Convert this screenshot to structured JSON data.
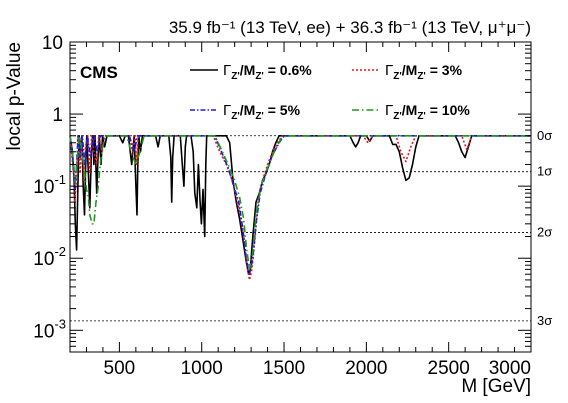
{
  "header": {
    "lumi_text": "35.9 fb⁻¹ (13 TeV, ee) + 36.3 fb⁻¹ (13 TeV, μ⁺μ⁻)"
  },
  "experiment_label": "CMS",
  "chart_data": {
    "type": "line",
    "xlabel": "M [GeV]",
    "ylabel": "local p-Value",
    "xlim": [
      200,
      3000
    ],
    "ylim": [
      0.0005,
      10
    ],
    "yscale": "log",
    "grid": false,
    "legend_placement": "top",
    "x_ticks": [
      {
        "value": 500,
        "label": "500"
      },
      {
        "value": 1000,
        "label": "1000"
      },
      {
        "value": 1500,
        "label": "1500"
      },
      {
        "value": 2000,
        "label": "2000"
      },
      {
        "value": 2500,
        "label": "2500"
      },
      {
        "value": 3000,
        "label": "3000"
      }
    ],
    "y_ticks": [
      {
        "value": 10,
        "base": "10",
        "exp": ""
      },
      {
        "value": 1,
        "base": "1",
        "exp": ""
      },
      {
        "value": 0.1,
        "base": "10",
        "exp": "-1"
      },
      {
        "value": 0.01,
        "base": "10",
        "exp": "-2"
      },
      {
        "value": 0.001,
        "base": "10",
        "exp": "-3"
      }
    ],
    "sigma_lines": [
      {
        "label": "0σ",
        "value": 0.5
      },
      {
        "label": "1σ",
        "value": 0.1587
      },
      {
        "label": "2σ",
        "value": 0.0228
      },
      {
        "label": "3σ",
        "value": 0.00135
      }
    ],
    "series": [
      {
        "name": "0.6%",
        "color": "#000000",
        "dash": "",
        "points": [
          [
            200,
            0.5
          ],
          [
            215,
            0.3
          ],
          [
            225,
            0.12
          ],
          [
            232,
            0.03
          ],
          [
            240,
            0.013
          ],
          [
            248,
            0.1
          ],
          [
            255,
            0.5
          ],
          [
            265,
            0.3
          ],
          [
            272,
            0.5
          ],
          [
            280,
            0.1
          ],
          [
            288,
            0.04
          ],
          [
            295,
            0.18
          ],
          [
            302,
            0.5
          ],
          [
            312,
            0.15
          ],
          [
            320,
            0.05
          ],
          [
            330,
            0.3
          ],
          [
            338,
            0.5
          ],
          [
            345,
            0.2
          ],
          [
            352,
            0.5
          ],
          [
            362,
            0.08
          ],
          [
            370,
            0.25
          ],
          [
            378,
            0.5
          ],
          [
            388,
            0.2
          ],
          [
            398,
            0.5
          ],
          [
            410,
            0.35
          ],
          [
            425,
            0.5
          ],
          [
            500,
            0.5
          ],
          [
            520,
            0.4
          ],
          [
            535,
            0.5
          ],
          [
            555,
            0.5
          ],
          [
            575,
            0.2
          ],
          [
            590,
            0.5
          ],
          [
            600,
            0.1
          ],
          [
            607,
            0.04
          ],
          [
            612,
            0.2
          ],
          [
            618,
            0.5
          ],
          [
            628,
            0.3
          ],
          [
            640,
            0.5
          ],
          [
            720,
            0.5
          ],
          [
            735,
            0.35
          ],
          [
            748,
            0.5
          ],
          [
            800,
            0.5
          ],
          [
            812,
            0.25
          ],
          [
            818,
            0.06
          ],
          [
            824,
            0.25
          ],
          [
            832,
            0.5
          ],
          [
            870,
            0.5
          ],
          [
            882,
            0.2
          ],
          [
            892,
            0.1
          ],
          [
            900,
            0.35
          ],
          [
            908,
            0.5
          ],
          [
            935,
            0.5
          ],
          [
            948,
            0.3
          ],
          [
            958,
            0.08
          ],
          [
            970,
            0.05
          ],
          [
            980,
            0.2
          ],
          [
            990,
            0.06
          ],
          [
            998,
            0.03
          ],
          [
            1008,
            0.09
          ],
          [
            1018,
            0.02
          ],
          [
            1025,
            0.2
          ],
          [
            1030,
            0.5
          ],
          [
            1150,
            0.5
          ],
          [
            1170,
            0.4
          ],
          [
            1190,
            0.12
          ],
          [
            1210,
            0.06
          ],
          [
            1230,
            0.035
          ],
          [
            1250,
            0.018
          ],
          [
            1270,
            0.009
          ],
          [
            1285,
            0.006
          ],
          [
            1295,
            0.007
          ],
          [
            1310,
            0.02
          ],
          [
            1330,
            0.06
          ],
          [
            1350,
            0.08
          ],
          [
            1370,
            0.12
          ],
          [
            1390,
            0.15
          ],
          [
            1410,
            0.2
          ],
          [
            1430,
            0.3
          ],
          [
            1450,
            0.4
          ],
          [
            1470,
            0.5
          ],
          [
            1900,
            0.5
          ],
          [
            1920,
            0.4
          ],
          [
            1935,
            0.35
          ],
          [
            1950,
            0.4
          ],
          [
            1965,
            0.5
          ],
          [
            2000,
            0.5
          ],
          [
            2020,
            0.42
          ],
          [
            2040,
            0.5
          ],
          [
            2140,
            0.5
          ],
          [
            2160,
            0.38
          ],
          [
            2180,
            0.38
          ],
          [
            2200,
            0.3
          ],
          [
            2220,
            0.18
          ],
          [
            2240,
            0.12
          ],
          [
            2260,
            0.13
          ],
          [
            2280,
            0.2
          ],
          [
            2300,
            0.35
          ],
          [
            2320,
            0.5
          ],
          [
            2540,
            0.5
          ],
          [
            2560,
            0.4
          ],
          [
            2580,
            0.3
          ],
          [
            2600,
            0.25
          ],
          [
            2620,
            0.35
          ],
          [
            2640,
            0.5
          ],
          [
            3000,
            0.5
          ]
        ]
      },
      {
        "name": "3%",
        "color": "#e8151c",
        "dash": "2,2",
        "points": [
          [
            200,
            0.5
          ],
          [
            222,
            0.15
          ],
          [
            230,
            0.06
          ],
          [
            238,
            0.12
          ],
          [
            248,
            0.5
          ],
          [
            262,
            0.15
          ],
          [
            272,
            0.5
          ],
          [
            285,
            0.12
          ],
          [
            295,
            0.35
          ],
          [
            308,
            0.5
          ],
          [
            320,
            0.15
          ],
          [
            332,
            0.5
          ],
          [
            345,
            0.3
          ],
          [
            362,
            0.2
          ],
          [
            375,
            0.5
          ],
          [
            395,
            0.3
          ],
          [
            410,
            0.5
          ],
          [
            560,
            0.5
          ],
          [
            580,
            0.3
          ],
          [
            595,
            0.5
          ],
          [
            605,
            0.2
          ],
          [
            615,
            0.5
          ],
          [
            640,
            0.5
          ],
          [
            1070,
            0.5
          ],
          [
            1110,
            0.3
          ],
          [
            1150,
            0.2
          ],
          [
            1185,
            0.12
          ],
          [
            1210,
            0.07
          ],
          [
            1235,
            0.04
          ],
          [
            1255,
            0.02
          ],
          [
            1275,
            0.008
          ],
          [
            1290,
            0.005
          ],
          [
            1305,
            0.007
          ],
          [
            1325,
            0.02
          ],
          [
            1345,
            0.07
          ],
          [
            1370,
            0.12
          ],
          [
            1400,
            0.2
          ],
          [
            1430,
            0.3
          ],
          [
            1460,
            0.4
          ],
          [
            1490,
            0.5
          ],
          [
            1980,
            0.5
          ],
          [
            2010,
            0.4
          ],
          [
            2040,
            0.5
          ],
          [
            2180,
            0.5
          ],
          [
            2210,
            0.3
          ],
          [
            2240,
            0.22
          ],
          [
            2270,
            0.35
          ],
          [
            2300,
            0.5
          ],
          [
            2580,
            0.5
          ],
          [
            2610,
            0.32
          ],
          [
            2640,
            0.5
          ],
          [
            3000,
            0.5
          ]
        ]
      },
      {
        "name": "5%",
        "color": "#1a1ae6",
        "dash": "5,2,1.5,2",
        "points": [
          [
            200,
            0.5
          ],
          [
            220,
            0.2
          ],
          [
            230,
            0.09
          ],
          [
            240,
            0.2
          ],
          [
            250,
            0.5
          ],
          [
            262,
            0.25
          ],
          [
            275,
            0.5
          ],
          [
            290,
            0.2
          ],
          [
            305,
            0.5
          ],
          [
            325,
            0.25
          ],
          [
            345,
            0.5
          ],
          [
            365,
            0.3
          ],
          [
            385,
            0.5
          ],
          [
            560,
            0.5
          ],
          [
            590,
            0.3
          ],
          [
            610,
            0.5
          ],
          [
            640,
            0.5
          ],
          [
            1080,
            0.5
          ],
          [
            1120,
            0.3
          ],
          [
            1160,
            0.18
          ],
          [
            1195,
            0.1
          ],
          [
            1225,
            0.06
          ],
          [
            1250,
            0.025
          ],
          [
            1270,
            0.01
          ],
          [
            1290,
            0.006
          ],
          [
            1310,
            0.01
          ],
          [
            1330,
            0.03
          ],
          [
            1355,
            0.08
          ],
          [
            1390,
            0.15
          ],
          [
            1430,
            0.27
          ],
          [
            1470,
            0.4
          ],
          [
            1500,
            0.5
          ],
          [
            3000,
            0.5
          ]
        ]
      },
      {
        "name": "10%",
        "color": "#1d9a1d",
        "dash": "7,3,1.5,3",
        "points": [
          [
            200,
            0.5
          ],
          [
            218,
            0.25
          ],
          [
            232,
            0.11
          ],
          [
            245,
            0.25
          ],
          [
            258,
            0.5
          ],
          [
            272,
            0.3
          ],
          [
            290,
            0.15
          ],
          [
            300,
            0.09
          ],
          [
            312,
            0.07
          ],
          [
            320,
            0.04
          ],
          [
            335,
            0.03
          ],
          [
            345,
            0.03
          ],
          [
            358,
            0.06
          ],
          [
            372,
            0.1
          ],
          [
            385,
            0.22
          ],
          [
            398,
            0.35
          ],
          [
            415,
            0.5
          ],
          [
            545,
            0.5
          ],
          [
            575,
            0.28
          ],
          [
            600,
            0.2
          ],
          [
            625,
            0.3
          ],
          [
            650,
            0.5
          ],
          [
            1080,
            0.5
          ],
          [
            1120,
            0.32
          ],
          [
            1160,
            0.2
          ],
          [
            1200,
            0.12
          ],
          [
            1230,
            0.07
          ],
          [
            1255,
            0.035
          ],
          [
            1270,
            0.015
          ],
          [
            1290,
            0.007
          ],
          [
            1310,
            0.012
          ],
          [
            1330,
            0.04
          ],
          [
            1360,
            0.1
          ],
          [
            1400,
            0.18
          ],
          [
            1440,
            0.3
          ],
          [
            1480,
            0.45
          ],
          [
            1510,
            0.5
          ],
          [
            3000,
            0.5
          ]
        ]
      }
    ]
  },
  "legend": {
    "gamma": "Γ",
    "sub_z": "Z'",
    "slash_M": "/M",
    "items": [
      {
        "value_text": " = 0.6%",
        "color": "#000000",
        "dash": ""
      },
      {
        "value_text": " = 3%",
        "color": "#e8151c",
        "dash": "2,2"
      },
      {
        "value_text": " = 5%",
        "color": "#1a1ae6",
        "dash": "5,2,1.5,2"
      },
      {
        "value_text": " = 10%",
        "color": "#1d9a1d",
        "dash": "7,3,1.5,3"
      }
    ]
  }
}
